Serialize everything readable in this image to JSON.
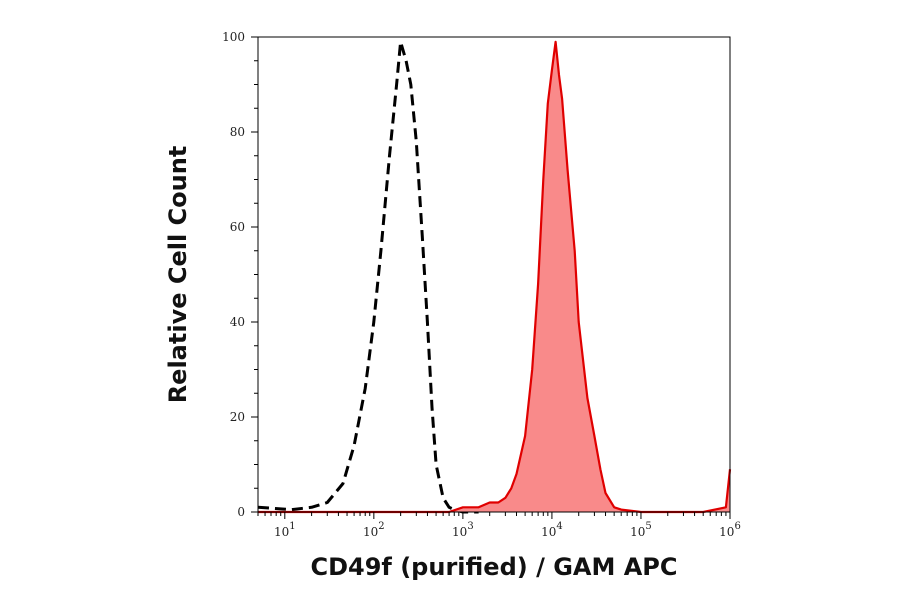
{
  "chart_data": {
    "type": "area",
    "xlabel": "CD49f (purified) / GAM APC",
    "ylabel": "Relative Cell Count",
    "x_scale": "log",
    "xlim": [
      5,
      1000000
    ],
    "ylim": [
      0,
      100
    ],
    "x_ticks": [
      {
        "base": "10",
        "exp": "1",
        "value": 10
      },
      {
        "base": "10",
        "exp": "2",
        "value": 100
      },
      {
        "base": "10",
        "exp": "3",
        "value": 1000
      },
      {
        "base": "10",
        "exp": "4",
        "value": 10000
      },
      {
        "base": "10",
        "exp": "5",
        "value": 100000
      },
      {
        "base": "10",
        "exp": "6",
        "value": 1000000
      }
    ],
    "y_ticks": [
      "0",
      "20",
      "40",
      "60",
      "80",
      "100"
    ],
    "grid": false,
    "legend": "none",
    "series": [
      {
        "style": "dashed",
        "color": "#000000",
        "fill": false,
        "x": [
          5,
          12,
          20,
          30,
          45,
          60,
          80,
          100,
          120,
          150,
          180,
          200,
          230,
          260,
          300,
          350,
          400,
          450,
          500,
          600,
          700,
          800,
          1000,
          1500
        ],
        "y": [
          1,
          0.5,
          1,
          2,
          6,
          14,
          26,
          40,
          55,
          75,
          90,
          99,
          95,
          90,
          78,
          58,
          40,
          22,
          10,
          3,
          1,
          0.5,
          0,
          0
        ]
      },
      {
        "style": "solid",
        "color": "#e00000",
        "fill": true,
        "fill_color": "#f98a8a",
        "x": [
          5,
          300,
          700,
          1000,
          1500,
          2000,
          2500,
          3000,
          3500,
          4000,
          5000,
          6000,
          7000,
          8000,
          9000,
          10000,
          11000,
          12000,
          13000,
          15000,
          18000,
          20000,
          25000,
          30000,
          35000,
          40000,
          50000,
          60000,
          100000,
          500000,
          900000,
          1000000
        ],
        "y": [
          0,
          0,
          0,
          1,
          1,
          2,
          2,
          3,
          5,
          8,
          16,
          30,
          48,
          70,
          86,
          93,
          99,
          92,
          87,
          72,
          55,
          40,
          24,
          16,
          9,
          4,
          1,
          0.5,
          0,
          0,
          1,
          9
        ]
      }
    ]
  }
}
